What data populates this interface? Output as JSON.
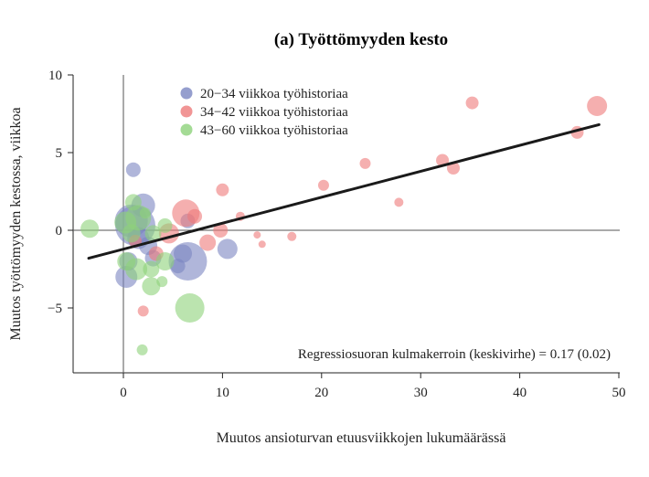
{
  "chart_data": {
    "type": "scatter",
    "title": "(a) Työttömyyden kesto",
    "xlabel": "Muutos ansioturvan etuusviikkojen lukumäärässä",
    "ylabel": "Muutos työttömyyden kestossa, viikkoa",
    "xlim": [
      -5,
      50
    ],
    "ylim": [
      -9,
      10
    ],
    "xticks": [
      0,
      10,
      20,
      30,
      40,
      50
    ],
    "yticks": [
      -5,
      0,
      5,
      10
    ],
    "legend_position": "top-left",
    "annotation": "Regressiosuoran kulmakerroin (keskivirhe) = 0.17 (0.02)",
    "regression_line": {
      "x": [
        -3.5,
        48
      ],
      "y": [
        -1.8,
        6.8
      ],
      "color": "#1a1a1a"
    },
    "series": [
      {
        "name": "20−34 viikkoa työhistoriaa",
        "color": "#7b86c2",
        "points": [
          {
            "x": 1.0,
            "y": 3.9,
            "size": 8
          },
          {
            "x": 2.0,
            "y": 1.6,
            "size": 13
          },
          {
            "x": 0.8,
            "y": 0.6,
            "size": 18
          },
          {
            "x": 1.2,
            "y": 0.3,
            "size": 22
          },
          {
            "x": 1.5,
            "y": -0.5,
            "size": 12
          },
          {
            "x": 2.5,
            "y": -1.0,
            "size": 10
          },
          {
            "x": 3.0,
            "y": -1.8,
            "size": 9
          },
          {
            "x": 0.3,
            "y": -3.0,
            "size": 12
          },
          {
            "x": 0.5,
            "y": -2.0,
            "size": 10
          },
          {
            "x": 6.5,
            "y": -2.0,
            "size": 21
          },
          {
            "x": 6.0,
            "y": -1.5,
            "size": 10
          },
          {
            "x": 5.5,
            "y": -2.3,
            "size": 8
          },
          {
            "x": 10.5,
            "y": -1.2,
            "size": 11
          },
          {
            "x": 6.5,
            "y": 0.6,
            "size": 8
          }
        ]
      },
      {
        "name": "34−42 viikkoa työhistoriaa",
        "color": "#ee7a7a",
        "points": [
          {
            "x": 47.8,
            "y": 8.0,
            "size": 11
          },
          {
            "x": 35.2,
            "y": 8.2,
            "size": 7
          },
          {
            "x": 45.8,
            "y": 6.3,
            "size": 7
          },
          {
            "x": 32.2,
            "y": 4.5,
            "size": 7
          },
          {
            "x": 33.3,
            "y": 4.0,
            "size": 7
          },
          {
            "x": 24.4,
            "y": 4.3,
            "size": 6
          },
          {
            "x": 20.2,
            "y": 2.9,
            "size": 6
          },
          {
            "x": 27.8,
            "y": 1.8,
            "size": 5
          },
          {
            "x": 10.0,
            "y": 2.6,
            "size": 7
          },
          {
            "x": 6.3,
            "y": 1.1,
            "size": 15
          },
          {
            "x": 7.2,
            "y": 0.9,
            "size": 8
          },
          {
            "x": 11.8,
            "y": 0.9,
            "size": 5
          },
          {
            "x": 9.8,
            "y": 0.0,
            "size": 8
          },
          {
            "x": 8.5,
            "y": -0.8,
            "size": 9
          },
          {
            "x": 13.5,
            "y": -0.3,
            "size": 4
          },
          {
            "x": 14.0,
            "y": -0.9,
            "size": 4
          },
          {
            "x": 17.0,
            "y": -0.4,
            "size": 5
          },
          {
            "x": 4.6,
            "y": -0.2,
            "size": 11
          },
          {
            "x": 3.3,
            "y": -1.5,
            "size": 8
          },
          {
            "x": 1.2,
            "y": -0.7,
            "size": 7
          },
          {
            "x": 2.0,
            "y": -5.2,
            "size": 6
          }
        ]
      },
      {
        "name": "43−60 viikkoa työhistoriaa",
        "color": "#8dd27a",
        "points": [
          {
            "x": -3.4,
            "y": 0.1,
            "size": 10
          },
          {
            "x": 1.0,
            "y": 1.8,
            "size": 9
          },
          {
            "x": 1.5,
            "y": 0.8,
            "size": 14
          },
          {
            "x": 0.2,
            "y": 0.5,
            "size": 12
          },
          {
            "x": 0.8,
            "y": -0.2,
            "size": 10
          },
          {
            "x": 3.0,
            "y": -0.2,
            "size": 9
          },
          {
            "x": 4.2,
            "y": 0.3,
            "size": 8
          },
          {
            "x": 0.3,
            "y": -2.0,
            "size": 10
          },
          {
            "x": 1.3,
            "y": -2.5,
            "size": 12
          },
          {
            "x": 2.8,
            "y": -2.5,
            "size": 9
          },
          {
            "x": 4.2,
            "y": -2.0,
            "size": 10
          },
          {
            "x": 2.8,
            "y": -3.6,
            "size": 10
          },
          {
            "x": 3.9,
            "y": -3.3,
            "size": 6
          },
          {
            "x": 6.7,
            "y": -5.0,
            "size": 16
          },
          {
            "x": 1.9,
            "y": -7.7,
            "size": 6
          },
          {
            "x": 2.2,
            "y": 1.1,
            "size": 6
          }
        ]
      }
    ]
  }
}
